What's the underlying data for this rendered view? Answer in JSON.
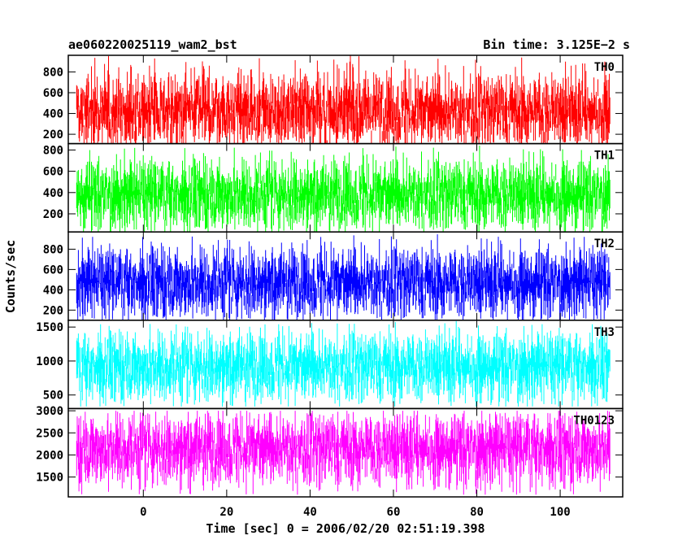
{
  "header": {
    "left_title": "ae060220025119_wam2_bst",
    "right_title": "Bin time: 3.125E−2 s"
  },
  "chart_data": {
    "type": "line",
    "xlabel": "Time [sec] 0 = 2006/02/20 02:51:19.398",
    "ylabel": "Counts/sec",
    "xlim": [
      -18,
      115
    ],
    "x_data_range": [
      -16,
      112
    ],
    "x_ticks": [
      0,
      20,
      40,
      60,
      80,
      100
    ],
    "x_tick_labels": [
      "0",
      "20",
      "40",
      "60",
      "80",
      "100"
    ],
    "panels": [
      {
        "name": "TH0",
        "color": "#ff0000",
        "ylim": [
          110,
          960
        ],
        "y_ticks": [
          200,
          400,
          600,
          800
        ],
        "y_tick_labels": [
          "200",
          "400",
          "600",
          "800"
        ],
        "mean": 420,
        "band_low": 180,
        "band_high": 720,
        "spike_min": 110,
        "spike_max": 960
      },
      {
        "name": "TH1",
        "color": "#00ff00",
        "ylim": [
          30,
          860
        ],
        "y_ticks": [
          200,
          400,
          600,
          800
        ],
        "y_tick_labels": [
          "200",
          "400",
          "600",
          "800"
        ],
        "mean": 380,
        "band_low": 150,
        "band_high": 650,
        "spike_min": 30,
        "spike_max": 860
      },
      {
        "name": "TH2",
        "color": "#0000ff",
        "ylim": [
          100,
          970
        ],
        "y_ticks": [
          200,
          400,
          600,
          800
        ],
        "y_tick_labels": [
          "200",
          "400",
          "600",
          "800"
        ],
        "mean": 470,
        "band_low": 190,
        "band_high": 720,
        "spike_min": 100,
        "spike_max": 970
      },
      {
        "name": "TH3",
        "color": "#00ffff",
        "ylim": [
          300,
          1600
        ],
        "y_ticks": [
          500,
          1000,
          1500
        ],
        "y_tick_labels": [
          "500",
          "1000",
          "1500"
        ],
        "mean": 920,
        "band_low": 520,
        "band_high": 1300,
        "spike_min": 330,
        "spike_max": 1600
      },
      {
        "name": "TH0123",
        "color": "#ff00ff",
        "ylim": [
          1050,
          3050
        ],
        "y_ticks": [
          1500,
          2000,
          2500,
          3000
        ],
        "y_tick_labels": [
          "1500",
          "2000",
          "2500",
          "3000"
        ],
        "mean": 2150,
        "band_low": 1450,
        "band_high": 2700,
        "spike_min": 1100,
        "spike_max": 3000
      }
    ]
  }
}
